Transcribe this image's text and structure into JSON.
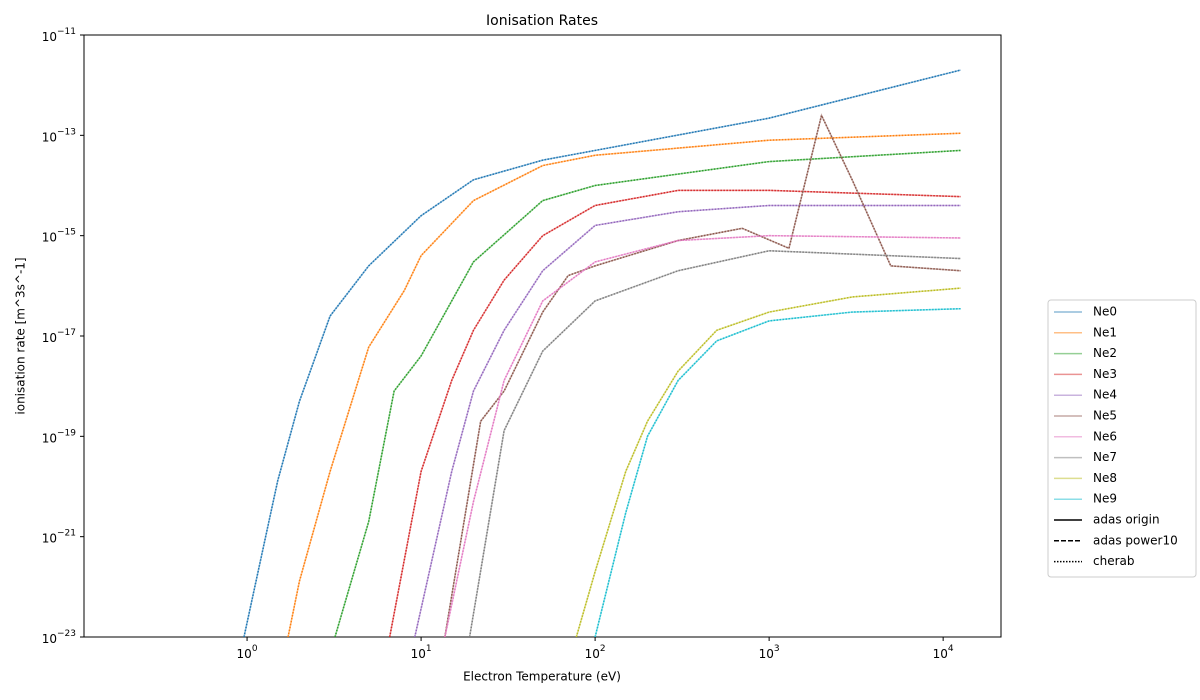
{
  "chart_data": {
    "type": "line",
    "title": "Ionisation Rates",
    "xlabel": "Electron Temperature (eV)",
    "ylabel": "ionisation rate [m^3s^-1]",
    "xscale": "log",
    "yscale": "log",
    "xlim": [
      0.1156,
      21500
    ],
    "ylim": [
      1e-23,
      1e-11
    ],
    "xticks": [
      {
        "value": 1,
        "label": "10",
        "exponent": "0"
      },
      {
        "value": 10,
        "label": "10",
        "exponent": "1"
      },
      {
        "value": 100,
        "label": "10",
        "exponent": "2"
      },
      {
        "value": 1000,
        "label": "10",
        "exponent": "3"
      },
      {
        "value": 10000,
        "label": "10",
        "exponent": "4"
      }
    ],
    "yticks": [
      {
        "value": 1e-23,
        "label": "10",
        "exponent": "−23"
      },
      {
        "value": 1e-21,
        "label": "10",
        "exponent": "−21"
      },
      {
        "value": 1e-19,
        "label": "10",
        "exponent": "−19"
      },
      {
        "value": 1e-17,
        "label": "10",
        "exponent": "−17"
      },
      {
        "value": 1e-15,
        "label": "10",
        "exponent": "−15"
      },
      {
        "value": 1e-13,
        "label": "10",
        "exponent": "−13"
      },
      {
        "value": 1e-11,
        "label": "10",
        "exponent": "−11"
      }
    ],
    "series": [
      {
        "name": "Ne0",
        "color": "#1f77b4",
        "x": [
          0.96,
          1.5,
          2,
          3,
          5,
          10,
          20,
          50,
          100,
          1000,
          12600
        ],
        "values": [
          1e-23,
          1.3e-20,
          5e-19,
          2.5e-17,
          2.5e-16,
          2.5e-15,
          1.3e-14,
          3.2e-14,
          5e-14,
          2.2e-13,
          2e-12
        ]
      },
      {
        "name": "Ne1",
        "color": "#ff7f0e",
        "x": [
          1.72,
          2,
          3,
          5,
          8,
          10,
          20,
          50,
          100,
          1000,
          12600
        ],
        "values": [
          1e-23,
          1.3e-22,
          2e-20,
          6e-18,
          8e-17,
          4e-16,
          5e-15,
          2.5e-14,
          4e-14,
          8e-14,
          1.1e-13
        ]
      },
      {
        "name": "Ne2",
        "color": "#2ca02c",
        "x": [
          3.2,
          5,
          7,
          10,
          20,
          50,
          100,
          1000,
          12600
        ],
        "values": [
          1e-23,
          2e-21,
          8e-19,
          4e-18,
          3e-16,
          5e-15,
          1e-14,
          3e-14,
          5e-14
        ]
      },
      {
        "name": "Ne3",
        "color": "#d62728",
        "x": [
          6.6,
          10,
          15,
          20,
          30,
          50,
          100,
          300,
          1000,
          12600
        ],
        "values": [
          1e-23,
          2e-20,
          1.3e-18,
          1.3e-17,
          1.3e-16,
          1e-15,
          4e-15,
          8e-15,
          8e-15,
          6e-15
        ]
      },
      {
        "name": "Ne4",
        "color": "#9467bd",
        "x": [
          9.2,
          15,
          20,
          30,
          50,
          100,
          300,
          1000,
          12600
        ],
        "values": [
          1e-23,
          2e-20,
          8e-19,
          1.3e-17,
          2e-16,
          1.6e-15,
          3e-15,
          4e-15,
          4e-15
        ]
      },
      {
        "name": "Ne5",
        "color": "#8c564b",
        "x": [
          13.7,
          22,
          30,
          50,
          70,
          100,
          300,
          700,
          1300,
          2000,
          3000,
          5000,
          12600
        ],
        "values": [
          1e-23,
          2e-19,
          8e-19,
          3e-17,
          1.6e-16,
          2.5e-16,
          8e-16,
          1.4e-15,
          5.6e-16,
          2.5e-13,
          1.3e-14,
          2.5e-16,
          2e-16
        ]
      },
      {
        "name": "Ne6",
        "color": "#e377c2",
        "x": [
          13.7,
          20,
          30,
          50,
          100,
          300,
          1000,
          12600
        ],
        "values": [
          1e-23,
          5e-21,
          1.3e-18,
          5e-17,
          3e-16,
          8e-16,
          1e-15,
          9e-16
        ]
      },
      {
        "name": "Ne7",
        "color": "#7f7f7f",
        "x": [
          19,
          30,
          50,
          100,
          300,
          1000,
          12600
        ],
        "values": [
          1e-23,
          1.3e-19,
          5e-18,
          5e-17,
          2e-16,
          5e-16,
          3.5e-16
        ]
      },
      {
        "name": "Ne8",
        "color": "#bcbd22",
        "x": [
          78,
          100,
          150,
          200,
          300,
          500,
          1000,
          3000,
          12600
        ],
        "values": [
          1e-23,
          2e-22,
          2e-20,
          2e-19,
          2e-18,
          1.3e-17,
          3e-17,
          6e-17,
          9e-17
        ]
      },
      {
        "name": "Ne9",
        "color": "#17becf",
        "x": [
          100,
          150,
          200,
          300,
          500,
          1000,
          3000,
          12600
        ],
        "values": [
          1e-23,
          3e-21,
          1e-19,
          1.3e-18,
          8e-18,
          2e-17,
          3e-17,
          3.5e-17
        ]
      }
    ],
    "line_styles": [
      {
        "name": "adas origin",
        "dash": "solid"
      },
      {
        "name": "adas power10",
        "dash": "dashed"
      },
      {
        "name": "cherab",
        "dash": "dotted"
      }
    ],
    "legend": "right"
  }
}
